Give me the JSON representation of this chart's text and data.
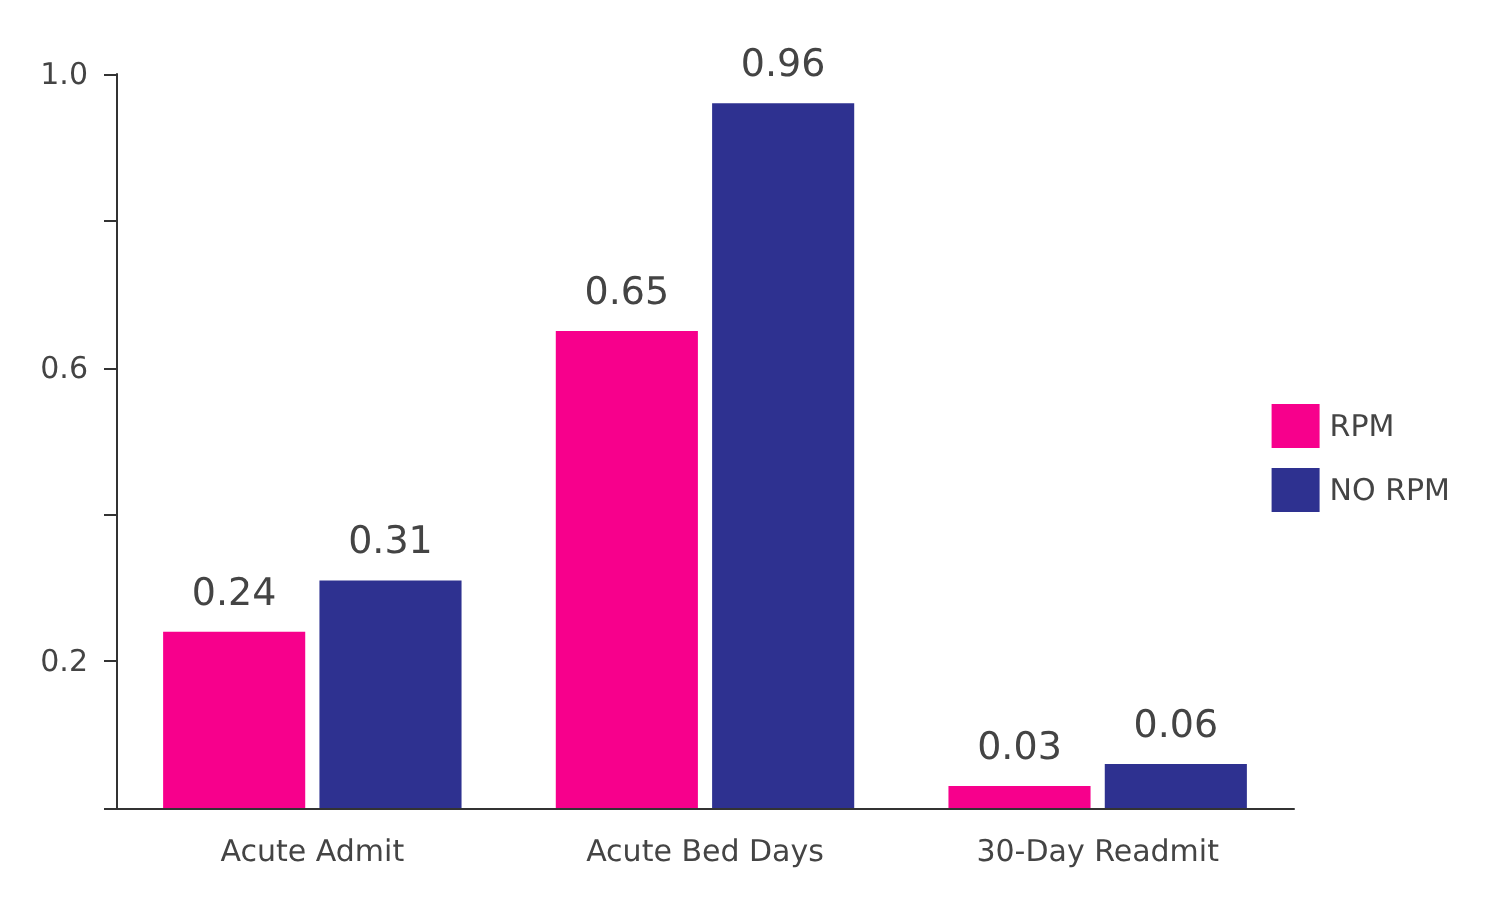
{
  "chart_data": {
    "type": "bar",
    "categories": [
      "Acute Admit",
      "Acute Bed Days",
      "30-Day Readmit"
    ],
    "series": [
      {
        "name": "RPM",
        "color": "#f7008c",
        "values": [
          0.24,
          0.65,
          0.03
        ]
      },
      {
        "name": "NO RPM",
        "color": "#2e3190",
        "values": [
          0.31,
          0.96,
          0.06
        ]
      }
    ],
    "ylim": [
      0,
      1
    ],
    "yticks": [
      {
        "value": 0,
        "label": null
      },
      0.2,
      {
        "value": 0.4,
        "label": null
      },
      0.6,
      {
        "value": 0.8,
        "label": null
      },
      {
        "value": 1,
        "label": "1.0"
      }
    ],
    "grid": false,
    "legend": "right",
    "data_labels": true
  }
}
